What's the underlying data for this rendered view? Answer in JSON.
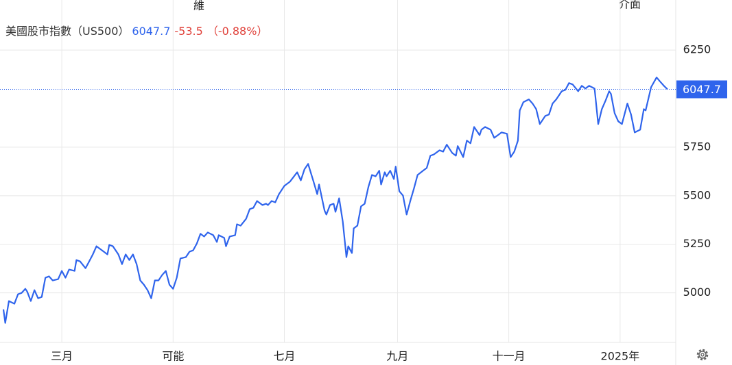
{
  "chart_data": {
    "type": "line",
    "title": "美國股市指數（US500）",
    "last_value": 6047.7,
    "change": -53.5,
    "change_pct": "（-0.88%）",
    "header_fragments": [
      "維",
      "介面"
    ],
    "color": "#2f64ec",
    "x": [
      28,
      29,
      31,
      34,
      36,
      38,
      40,
      41,
      43,
      45,
      47,
      49,
      51,
      53,
      55,
      58,
      60,
      62,
      64,
      67,
      68,
      70,
      73,
      75,
      77,
      79,
      82,
      85,
      86,
      88,
      91,
      93,
      95,
      97,
      99,
      101,
      103,
      105,
      107,
      109,
      111,
      113,
      115,
      117,
      119,
      121,
      123,
      125,
      128,
      130,
      132,
      134,
      136,
      138,
      140,
      143,
      145,
      146,
      149,
      150,
      152,
      155,
      156,
      158,
      161,
      163,
      165,
      167,
      170,
      172,
      173,
      175,
      177,
      179,
      182,
      185,
      189,
      191,
      193,
      195,
      198,
      200,
      201,
      204,
      205,
      207,
      209,
      210,
      212,
      214,
      216,
      217,
      219,
      220,
      222,
      224,
      226,
      228,
      230,
      232,
      234,
      235,
      237,
      238,
      240,
      242,
      243,
      245,
      247,
      249,
      251,
      253,
      255,
      258,
      260,
      262,
      264,
      267,
      269,
      271,
      274,
      276,
      277,
      280,
      282,
      284,
      286,
      289,
      290,
      292,
      295,
      297,
      299,
      301,
      304,
      306,
      308,
      310,
      311,
      313,
      316,
      318,
      320,
      322,
      325,
      327,
      329,
      331,
      334,
      336,
      338,
      340,
      343,
      345,
      347,
      349,
      352,
      354,
      356,
      358,
      360,
      361,
      363,
      365,
      367,
      370,
      372,
      374,
      377,
      379,
      380,
      383,
      386,
      388,
      390,
      392
    ],
    "values": [
      4915,
      4845,
      4958,
      4944,
      4993,
      5000,
      5021,
      5007,
      4958,
      5014,
      4972,
      4979,
      5078,
      5085,
      5064,
      5071,
      5113,
      5078,
      5120,
      5113,
      5169,
      5162,
      5127,
      5162,
      5198,
      5240,
      5219,
      5198,
      5247,
      5240,
      5198,
      5148,
      5198,
      5169,
      5198,
      5148,
      5064,
      5042,
      5014,
      4972,
      5064,
      5064,
      5092,
      5113,
      5042,
      5021,
      5078,
      5177,
      5184,
      5212,
      5219,
      5254,
      5304,
      5290,
      5311,
      5297,
      5262,
      5297,
      5283,
      5240,
      5290,
      5297,
      5353,
      5346,
      5381,
      5431,
      5438,
      5473,
      5452,
      5459,
      5452,
      5473,
      5466,
      5508,
      5551,
      5572,
      5621,
      5579,
      5636,
      5664,
      5572,
      5508,
      5558,
      5424,
      5403,
      5452,
      5459,
      5417,
      5487,
      5367,
      5184,
      5240,
      5205,
      5332,
      5346,
      5445,
      5459,
      5544,
      5607,
      5600,
      5629,
      5558,
      5621,
      5600,
      5629,
      5586,
      5650,
      5523,
      5501,
      5403,
      5473,
      5537,
      5607,
      5629,
      5643,
      5706,
      5713,
      5734,
      5727,
      5763,
      5720,
      5706,
      5756,
      5699,
      5784,
      5770,
      5854,
      5812,
      5840,
      5854,
      5840,
      5798,
      5812,
      5826,
      5819,
      5699,
      5727,
      5784,
      5939,
      5982,
      5996,
      5975,
      5946,
      5869,
      5911,
      5918,
      5975,
      5996,
      6038,
      6045,
      6080,
      6073,
      6038,
      6066,
      6052,
      6066,
      6052,
      5869,
      5946,
      5989,
      6038,
      6024,
      5925,
      5883,
      5869,
      5975,
      5918,
      5826,
      5840,
      5946,
      5939,
      6059,
      6109,
      6087,
      6066,
      6047.7
    ],
    "xlim": [
      28,
      396.5
    ],
    "ylim": [
      4745,
      6490
    ],
    "xticks": [
      {
        "value": 60,
        "label": "三月"
      },
      {
        "value": 121,
        "label": "可能"
      },
      {
        "value": 182,
        "label": "七月"
      },
      {
        "value": 244,
        "label": "九月"
      },
      {
        "value": 305,
        "label": "十一月"
      },
      {
        "value": 366,
        "label": "2025年"
      }
    ],
    "yticks": [
      5000,
      5250,
      5500,
      5750,
      6250
    ],
    "grid": true
  }
}
